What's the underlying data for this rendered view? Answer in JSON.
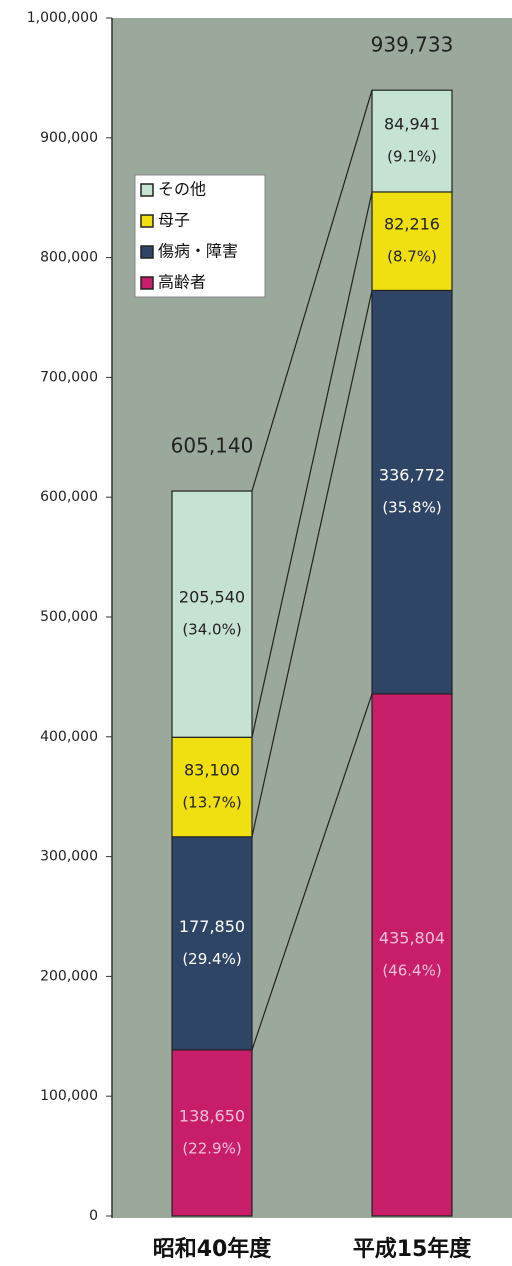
{
  "chart_data": {
    "type": "stacked_bar",
    "categories": [
      "昭和40年度",
      "平成15年度"
    ],
    "series": [
      {
        "name": "高齢者",
        "color": "#c81e6a",
        "values": [
          138650,
          435804
        ],
        "value_labels": [
          "138,650",
          "435,804"
        ],
        "share_labels": [
          "(22.9%)",
          "(46.4%)"
        ]
      },
      {
        "name": "傷病・障害",
        "color": "#2f4566",
        "values": [
          177850,
          336772
        ],
        "value_labels": [
          "177,850",
          "336,772"
        ],
        "share_labels": [
          "(29.4%)",
          "(35.8%)"
        ]
      },
      {
        "name": "母子",
        "color": "#f0e012",
        "values": [
          83100,
          82216
        ],
        "value_labels": [
          "83,100",
          "82,216"
        ],
        "share_labels": [
          "(13.7%)",
          "(8.7%)"
        ]
      },
      {
        "name": "その他",
        "color": "#c6e2d2",
        "values": [
          205540,
          84941
        ],
        "value_labels": [
          "205,540",
          "84,941"
        ],
        "share_labels": [
          "(34.0%)",
          "(9.1%)"
        ]
      }
    ],
    "totals": [
      605140,
      939733
    ],
    "total_labels": [
      "605,140",
      "939,733"
    ],
    "ylim": [
      0,
      1000000
    ],
    "yticks": [
      0,
      {
        "value": 100000,
        "label": "100,000"
      },
      {
        "value": 200000,
        "label": "200,000"
      },
      {
        "value": 300000,
        "label": "300,000"
      },
      {
        "value": 400000,
        "label": "400,000"
      },
      {
        "value": 500000,
        "label": "500,000"
      },
      {
        "value": 600000,
        "label": "600,000"
      },
      {
        "value": 700000,
        "label": "700,000"
      },
      {
        "value": 800000,
        "label": "800,000"
      },
      {
        "value": 900000,
        "label": "900,000"
      },
      {
        "value": 1000000,
        "label": "1,000,000"
      }
    ]
  }
}
